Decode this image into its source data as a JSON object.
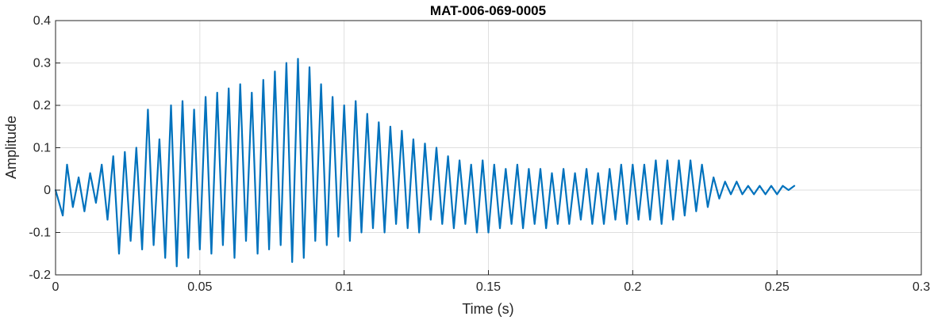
{
  "chart_data": {
    "type": "line",
    "title": "MAT-006-069-0005",
    "xlabel": "Time (s)",
    "ylabel": "Amplitude",
    "xlim": [
      0,
      0.3
    ],
    "ylim": [
      -0.2,
      0.4
    ],
    "xticks": [
      "0",
      "0.05",
      "0.1",
      "0.15",
      "0.2",
      "0.25",
      "0.3"
    ],
    "yticks": [
      "-0.2",
      "-0.1",
      "0",
      "0.1",
      "0.2",
      "0.3",
      "0.4"
    ],
    "grid": true,
    "series": [
      {
        "color": "#0072BD",
        "x": [
          0,
          0.0025,
          0.004,
          0.006,
          0.008,
          0.01,
          0.012,
          0.014,
          0.016,
          0.018,
          0.02,
          0.022,
          0.024,
          0.026,
          0.028,
          0.03,
          0.032,
          0.034,
          0.036,
          0.038,
          0.04,
          0.042,
          0.044,
          0.046,
          0.048,
          0.05,
          0.052,
          0.054,
          0.056,
          0.058,
          0.06,
          0.062,
          0.064,
          0.066,
          0.068,
          0.07,
          0.072,
          0.074,
          0.076,
          0.078,
          0.08,
          0.082,
          0.084,
          0.086,
          0.088,
          0.09,
          0.092,
          0.094,
          0.096,
          0.098,
          0.1,
          0.102,
          0.104,
          0.106,
          0.108,
          0.11,
          0.112,
          0.114,
          0.116,
          0.118,
          0.12,
          0.122,
          0.124,
          0.126,
          0.128,
          0.13,
          0.132,
          0.134,
          0.136,
          0.138,
          0.14,
          0.142,
          0.144,
          0.146,
          0.148,
          0.15,
          0.152,
          0.154,
          0.156,
          0.158,
          0.16,
          0.162,
          0.164,
          0.166,
          0.168,
          0.17,
          0.172,
          0.174,
          0.176,
          0.178,
          0.18,
          0.182,
          0.184,
          0.186,
          0.188,
          0.19,
          0.192,
          0.194,
          0.196,
          0.198,
          0.2,
          0.202,
          0.204,
          0.206,
          0.208,
          0.21,
          0.212,
          0.214,
          0.216,
          0.218,
          0.22,
          0.222,
          0.224,
          0.226,
          0.228,
          0.23,
          0.232,
          0.234,
          0.236,
          0.238,
          0.24,
          0.242,
          0.244,
          0.246,
          0.248,
          0.25,
          0.252,
          0.254,
          0.256
        ],
        "y": [
          0.0,
          -0.06,
          0.06,
          -0.04,
          0.03,
          -0.05,
          0.04,
          -0.03,
          0.06,
          -0.07,
          0.08,
          -0.15,
          0.09,
          -0.12,
          0.1,
          -0.14,
          0.19,
          -0.13,
          0.12,
          -0.16,
          0.2,
          -0.18,
          0.21,
          -0.16,
          0.19,
          -0.14,
          0.22,
          -0.15,
          0.23,
          -0.13,
          0.24,
          -0.16,
          0.25,
          -0.12,
          0.23,
          -0.15,
          0.26,
          -0.14,
          0.28,
          -0.13,
          0.3,
          -0.17,
          0.31,
          -0.16,
          0.29,
          -0.12,
          0.25,
          -0.13,
          0.22,
          -0.11,
          0.2,
          -0.12,
          0.21,
          -0.1,
          0.18,
          -0.09,
          0.16,
          -0.1,
          0.15,
          -0.08,
          0.14,
          -0.09,
          0.12,
          -0.1,
          0.11,
          -0.07,
          0.1,
          -0.08,
          0.08,
          -0.09,
          0.07,
          -0.08,
          0.06,
          -0.1,
          0.07,
          -0.1,
          0.06,
          -0.09,
          0.05,
          -0.08,
          0.06,
          -0.09,
          0.05,
          -0.08,
          0.05,
          -0.09,
          0.04,
          -0.08,
          0.05,
          -0.08,
          0.04,
          -0.07,
          0.05,
          -0.08,
          0.04,
          -0.08,
          0.05,
          -0.07,
          0.06,
          -0.08,
          0.06,
          -0.07,
          0.06,
          -0.07,
          0.07,
          -0.08,
          0.07,
          -0.07,
          0.07,
          -0.06,
          0.07,
          -0.05,
          0.06,
          -0.04,
          0.03,
          -0.02,
          0.02,
          -0.01,
          0.02,
          -0.01,
          0.01,
          -0.01,
          0.01,
          -0.01,
          0.01,
          -0.01,
          0.01,
          0.0,
          0.01
        ]
      }
    ]
  }
}
